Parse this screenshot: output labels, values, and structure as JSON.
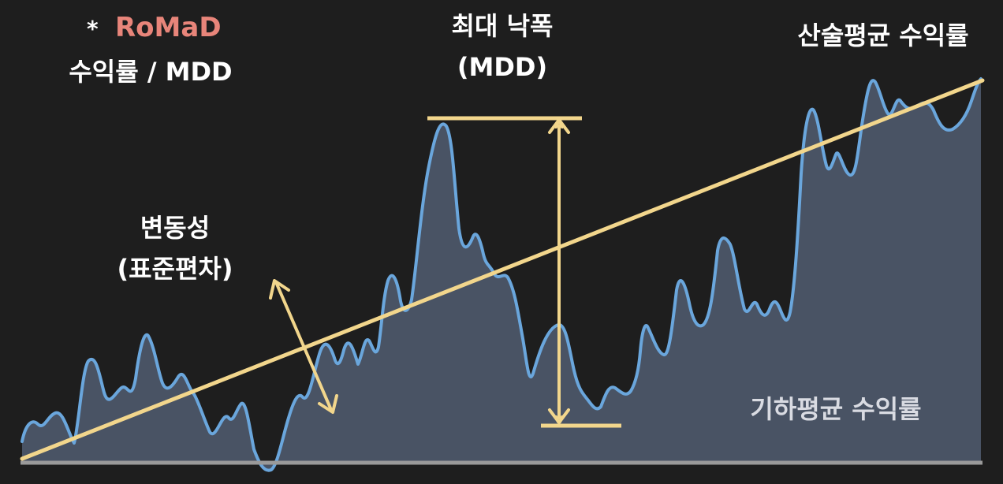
{
  "labels": {
    "romad_star": "*",
    "romad_title": "RoMaD",
    "romad_formula": "수익률 / MDD",
    "mdd_title": "최대 낙폭",
    "mdd_abbr": "(MDD)",
    "arith_mean": "산술평균 수익률",
    "volatility_title": "변동성",
    "volatility_sub": "(표준편차)",
    "geo_mean": "기하평균 수익률"
  },
  "colors": {
    "background": "#1e1e1e",
    "price_line": "#6aa6dc",
    "area_fill": "#4c5668",
    "trend_line": "#f2d68c",
    "mdd_arrow": "#f2d68c",
    "volatility_arrow": "#f2d68c",
    "baseline": "#9a9a9a",
    "romad_accent": "#e8857a",
    "text": "#ffffff"
  },
  "icons": {
    "mdd_marker": "vertical-double-arrow-icon",
    "volatility_marker": "diagonal-double-arrow-icon"
  }
}
